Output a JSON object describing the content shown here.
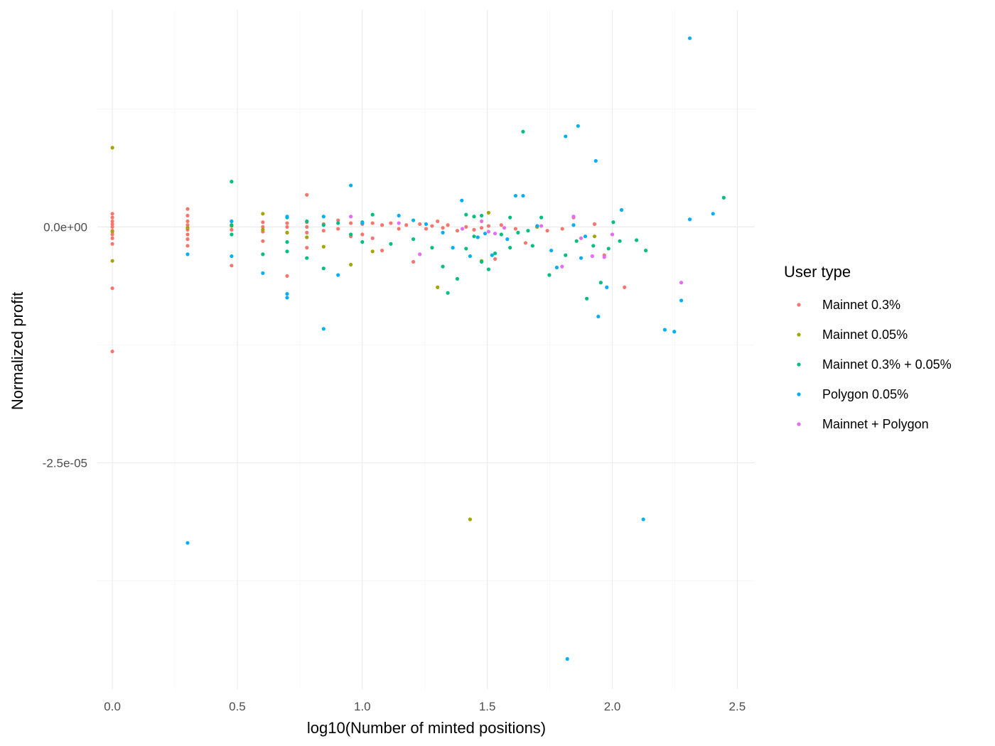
{
  "chart_data": {
    "type": "scatter",
    "xlabel": "log10(Number of minted positions)",
    "ylabel": "Normalized profit",
    "xlim": [
      -0.06,
      2.57
    ],
    "ylim": [
      -4.9e-05,
      2.3e-05
    ],
    "x_ticks": [
      0.0,
      0.5,
      1.0,
      1.5,
      2.0,
      2.5
    ],
    "x_tick_labels": [
      "0.0",
      "0.5",
      "1.0",
      "1.5",
      "2.0",
      "2.5"
    ],
    "y_ticks": [
      0.0,
      -2.5e-05
    ],
    "y_tick_labels": [
      "0.0e+00",
      "-2.5e-05"
    ],
    "y_minor_ticks": [
      1.25e-05,
      -1.25e-05,
      -3.75e-05
    ],
    "x_minor_ticks": [
      0.25,
      0.75,
      1.25,
      1.75,
      2.25
    ],
    "grid": true,
    "legend": {
      "title": "User type",
      "position": "right"
    },
    "series": [
      {
        "name": "Mainnet 0.3%",
        "color": "#F8766D",
        "points": [
          [
            0.0,
            1.4e-06
          ],
          [
            0.0,
            1e-06
          ],
          [
            0.0,
            6e-07
          ],
          [
            0.0,
            3e-07
          ],
          [
            0.0,
            0.0
          ],
          [
            0.0,
            -4e-07
          ],
          [
            0.0,
            -8e-07
          ],
          [
            0.0,
            -1.2e-06
          ],
          [
            0.0,
            -1.8e-06
          ],
          [
            0.0,
            -6.5e-06
          ],
          [
            0.0,
            -1.32e-05
          ],
          [
            0.301,
            1.9e-06
          ],
          [
            0.301,
            1.2e-06
          ],
          [
            0.301,
            6e-07
          ],
          [
            0.301,
            2e-07
          ],
          [
            0.301,
            -3e-07
          ],
          [
            0.301,
            -8e-07
          ],
          [
            0.301,
            -1.3e-06
          ],
          [
            0.301,
            -2e-06
          ],
          [
            0.477,
            6e-07
          ],
          [
            0.477,
            2e-07
          ],
          [
            0.477,
            -3e-07
          ],
          [
            0.477,
            -4.1e-06
          ],
          [
            0.602,
            5e-07
          ],
          [
            0.602,
            0.0
          ],
          [
            0.602,
            -5e-07
          ],
          [
            0.602,
            -1.5e-06
          ],
          [
            0.699,
            4e-07
          ],
          [
            0.699,
            0.0
          ],
          [
            0.699,
            -6e-07
          ],
          [
            0.699,
            -5.2e-06
          ],
          [
            0.778,
            3.4e-06
          ],
          [
            0.778,
            5e-07
          ],
          [
            0.778,
            0.0
          ],
          [
            0.778,
            -6e-07
          ],
          [
            0.778,
            -2.2e-06
          ],
          [
            0.845,
            3e-07
          ],
          [
            0.845,
            -4e-07
          ],
          [
            0.903,
            7e-07
          ],
          [
            0.903,
            -2e-07
          ],
          [
            0.954,
            4e-07
          ],
          [
            0.954,
            -1e-06
          ],
          [
            1.0,
            3e-07
          ],
          [
            1.0,
            -8e-07
          ],
          [
            1.041,
            4e-07
          ],
          [
            1.041,
            -1.2e-06
          ],
          [
            1.079,
            -2.5e-06
          ],
          [
            1.079,
            2e-07
          ],
          [
            1.114,
            4e-07
          ],
          [
            1.146,
            -2e-07
          ],
          [
            1.176,
            2e-07
          ],
          [
            1.204,
            -3.7e-06
          ],
          [
            1.23,
            3e-07
          ],
          [
            1.255,
            -2e-07
          ],
          [
            1.279,
            1e-07
          ],
          [
            1.301,
            6e-07
          ],
          [
            1.322,
            -1e-07
          ],
          [
            1.342,
            2e-07
          ],
          [
            1.38,
            -4e-07
          ],
          [
            1.415,
            0.0
          ],
          [
            1.447,
            -3e-07
          ],
          [
            1.477,
            -1e-07
          ],
          [
            1.505,
            1e-07
          ],
          [
            1.531,
            -3.4e-06
          ],
          [
            1.556,
            2e-07
          ],
          [
            1.613,
            -2e-07
          ],
          [
            1.653,
            -1.7e-06
          ],
          [
            1.699,
            1e-07
          ],
          [
            1.74,
            -4e-07
          ],
          [
            1.8,
            -2e-07
          ],
          [
            1.845,
            1e-06
          ],
          [
            1.929,
            3e-07
          ],
          [
            1.968,
            -3e-06
          ],
          [
            2.049,
            -6.4e-06
          ]
        ]
      },
      {
        "name": "Mainnet 0.05%",
        "color": "#A3A500",
        "points": [
          [
            0.0,
            8.4e-06
          ],
          [
            0.0,
            -3.6e-06
          ],
          [
            0.0,
            -5e-07
          ],
          [
            0.301,
            -1e-07
          ],
          [
            0.477,
            1e-07
          ],
          [
            0.602,
            1.4e-06
          ],
          [
            0.602,
            -3e-07
          ],
          [
            0.699,
            -6e-07
          ],
          [
            0.778,
            -1.1e-06
          ],
          [
            0.845,
            -2.1e-06
          ],
          [
            0.954,
            -4e-06
          ],
          [
            1.041,
            -2.6e-06
          ],
          [
            1.301,
            -6.4e-06
          ],
          [
            1.431,
            -3.1e-05
          ],
          [
            1.477,
            -3.6e-06
          ],
          [
            1.505,
            1.5e-06
          ],
          [
            1.699,
            0.0
          ],
          [
            1.929,
            -1e-06
          ]
        ]
      },
      {
        "name": "Mainnet 0.3% + 0.05%",
        "color": "#00BF7D",
        "points": [
          [
            0.477,
            4.8e-06
          ],
          [
            0.477,
            2e-07
          ],
          [
            0.477,
            -8e-07
          ],
          [
            0.602,
            -2.9e-06
          ],
          [
            0.699,
            1e-06
          ],
          [
            0.699,
            -1.6e-06
          ],
          [
            0.699,
            -2.6e-06
          ],
          [
            0.778,
            6e-07
          ],
          [
            0.778,
            -3.3e-06
          ],
          [
            0.845,
            -4.4e-06
          ],
          [
            0.845,
            2e-07
          ],
          [
            0.903,
            4e-07
          ],
          [
            0.954,
            -8e-07
          ],
          [
            1.0,
            5e-07
          ],
          [
            1.0,
            -1.6e-06
          ],
          [
            1.041,
            1.3e-06
          ],
          [
            1.114,
            -1.8e-06
          ],
          [
            1.204,
            -1.3e-06
          ],
          [
            1.279,
            -2.2e-06
          ],
          [
            1.322,
            -4.2e-06
          ],
          [
            1.342,
            -7e-06
          ],
          [
            1.38,
            -5.5e-06
          ],
          [
            1.415,
            1.3e-06
          ],
          [
            1.415,
            -2.3e-06
          ],
          [
            1.447,
            1.1e-06
          ],
          [
            1.447,
            -1e-06
          ],
          [
            1.477,
            1.2e-06
          ],
          [
            1.477,
            -3.7e-06
          ],
          [
            1.505,
            -4.5e-06
          ],
          [
            1.531,
            -2.8e-06
          ],
          [
            1.556,
            -8e-07
          ],
          [
            1.591,
            -2.2e-06
          ],
          [
            1.591,
            1e-06
          ],
          [
            1.623,
            -6e-07
          ],
          [
            1.643,
            1.01e-05
          ],
          [
            1.663,
            -4e-07
          ],
          [
            1.681,
            -2e-06
          ],
          [
            1.716,
            1e-06
          ],
          [
            1.748,
            -5.1e-06
          ],
          [
            1.813,
            -3e-06
          ],
          [
            1.857,
            -1.5e-06
          ],
          [
            1.898,
            -7.6e-06
          ],
          [
            1.924,
            -2e-06
          ],
          [
            1.954,
            -5.9e-06
          ],
          [
            1.985,
            -2.3e-06
          ],
          [
            2.004,
            5e-07
          ],
          [
            2.03,
            -1.5e-06
          ],
          [
            2.097,
            -1.4e-06
          ],
          [
            2.134,
            -2.5e-06
          ],
          [
            2.446,
            3.1e-06
          ]
        ]
      },
      {
        "name": "Polygon 0.05%",
        "color": "#00B0F6",
        "points": [
          [
            0.301,
            -2.9e-06
          ],
          [
            0.301,
            -3.35e-05
          ],
          [
            0.477,
            -3.1e-06
          ],
          [
            0.477,
            6e-07
          ],
          [
            0.602,
            -4.9e-06
          ],
          [
            0.699,
            -7.1e-06
          ],
          [
            0.699,
            -7.5e-06
          ],
          [
            0.699,
            1.1e-06
          ],
          [
            0.845,
            1.1e-06
          ],
          [
            0.845,
            -1.08e-05
          ],
          [
            0.903,
            -5.1e-06
          ],
          [
            0.954,
            4.4e-06
          ],
          [
            1.0,
            4e-07
          ],
          [
            1.146,
            1.2e-06
          ],
          [
            1.204,
            7e-07
          ],
          [
            1.255,
            3e-07
          ],
          [
            1.322,
            -6e-07
          ],
          [
            1.362,
            -2.2e-06
          ],
          [
            1.398,
            2.8e-06
          ],
          [
            1.431,
            -3.1e-06
          ],
          [
            1.462,
            -1.1e-06
          ],
          [
            1.491,
            -7e-07
          ],
          [
            1.519,
            -3e-06
          ],
          [
            1.58,
            -1.3e-06
          ],
          [
            1.613,
            3.3e-06
          ],
          [
            1.643,
            3.3e-06
          ],
          [
            1.7,
            1e-07
          ],
          [
            1.756,
            -2.5e-06
          ],
          [
            1.778,
            -4.3e-06
          ],
          [
            1.813,
            9.6e-06
          ],
          [
            1.82,
            -4.58e-05
          ],
          [
            1.845,
            2e-07
          ],
          [
            1.863,
            1.07e-05
          ],
          [
            1.875,
            -3.3e-06
          ],
          [
            1.892,
            -1e-06
          ],
          [
            1.934,
            7e-06
          ],
          [
            1.944,
            -9.5e-06
          ],
          [
            1.978,
            -6.4e-06
          ],
          [
            2.037,
            1.8e-06
          ],
          [
            2.124,
            -3.1e-05
          ],
          [
            2.21,
            -1.09e-05
          ],
          [
            2.248,
            -1.11e-05
          ],
          [
            2.276,
            -7.8e-06
          ],
          [
            2.31,
            2e-05
          ],
          [
            2.31,
            8e-07
          ],
          [
            2.403,
            1.4e-06
          ]
        ]
      },
      {
        "name": "Mainnet + Polygon",
        "color": "#E76BF3",
        "points": [
          [
            0.954,
            1.1e-06
          ],
          [
            1.146,
            4e-07
          ],
          [
            1.23,
            -2.9e-06
          ],
          [
            1.4,
            -2e-07
          ],
          [
            1.477,
            6e-07
          ],
          [
            1.505,
            -5e-07
          ],
          [
            1.531,
            -7e-07
          ],
          [
            1.568,
            -1e-07
          ],
          [
            1.716,
            1e-07
          ],
          [
            1.799,
            -4.2e-06
          ],
          [
            1.845,
            1.1e-06
          ],
          [
            1.875,
            -1.2e-06
          ],
          [
            1.92,
            -3.1e-06
          ],
          [
            1.968,
            -3.2e-06
          ],
          [
            2.0,
            -8e-07
          ],
          [
            2.276,
            -5.9e-06
          ]
        ]
      }
    ]
  }
}
